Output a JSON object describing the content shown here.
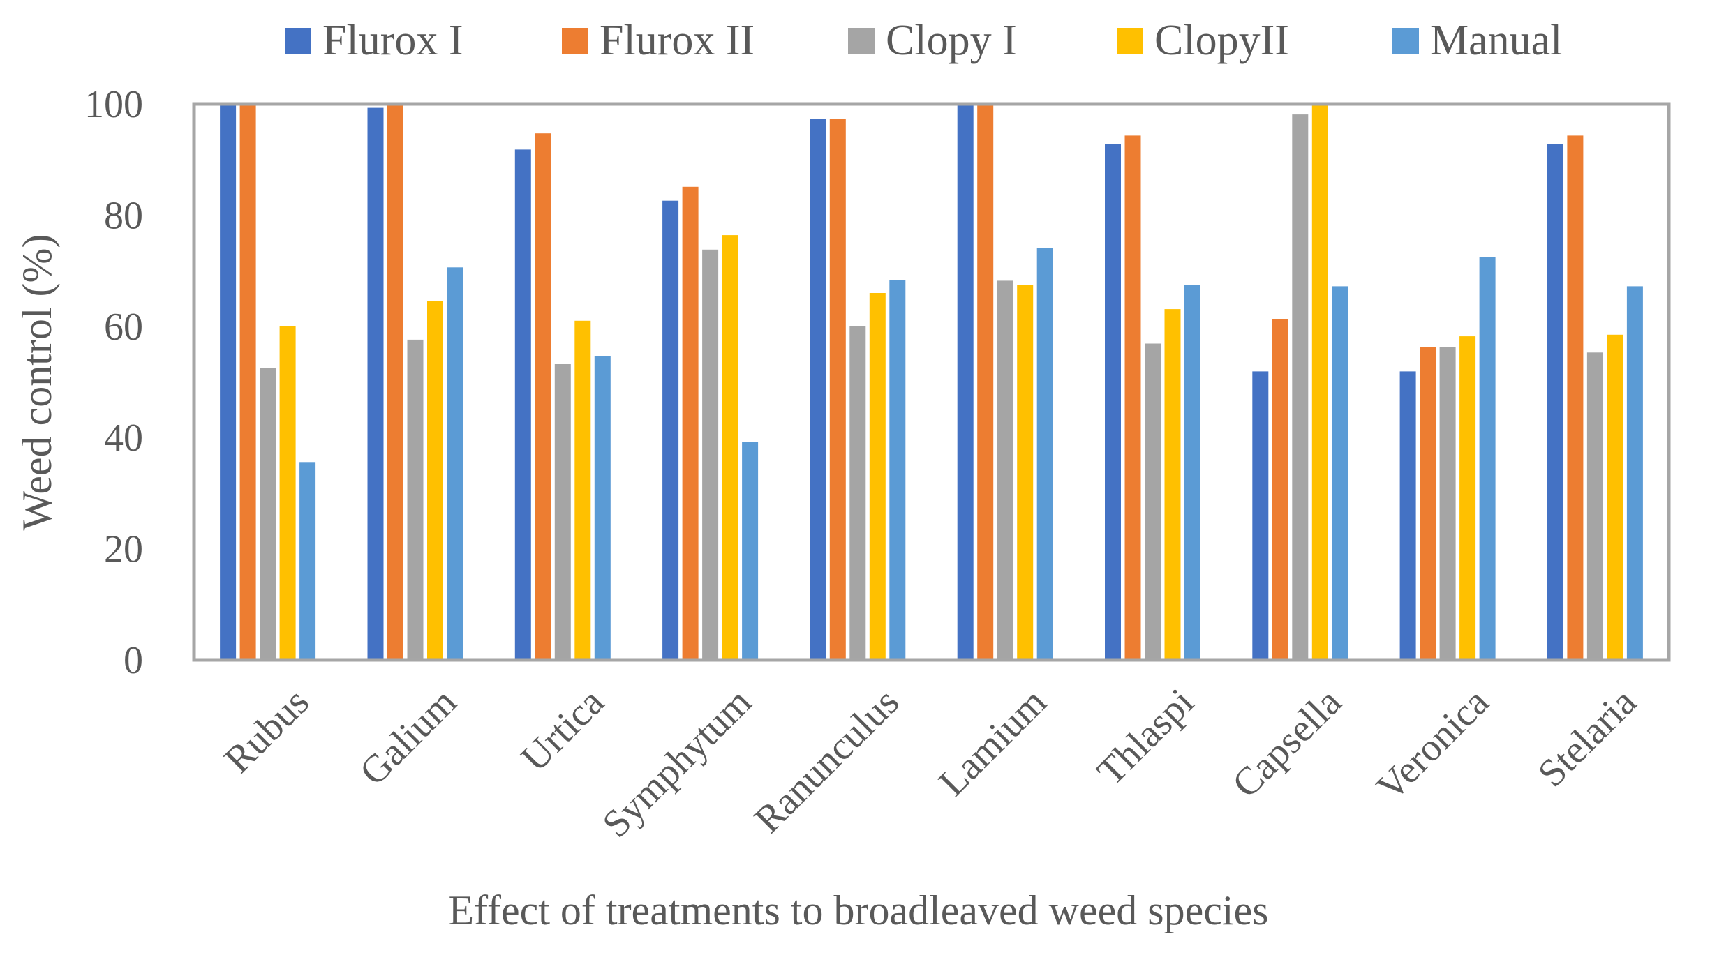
{
  "chart_data": {
    "type": "bar",
    "title": "",
    "xlabel": "Effect of treatments to broadleaved weed species",
    "ylabel": "Weed control (%)",
    "ylim": [
      0,
      100
    ],
    "yticks": [
      "0",
      "20",
      "40",
      "60",
      "80",
      "100"
    ],
    "grid": false,
    "legend_position": "top",
    "categories": [
      "Rubus",
      "Galium",
      "Urtica",
      "Symphytum",
      "Ranunculus",
      "Lamium",
      "Thlaspi",
      "Capsella",
      "Veronica",
      "Stelaria"
    ],
    "series": [
      {
        "name": "Flurox I",
        "color": "#4472C4",
        "values": [
          100,
          99.3,
          91.8,
          82.6,
          97.3,
          100,
          92.8,
          51.9,
          51.9,
          92.8
        ]
      },
      {
        "name": "Flurox II",
        "color": "#ED7D31",
        "values": [
          100,
          100,
          94.7,
          85.1,
          97.3,
          100,
          94.3,
          61.3,
          56.3,
          94.3
        ]
      },
      {
        "name": "Clopy I",
        "color": "#A5A5A5",
        "values": [
          52.5,
          57.6,
          53.2,
          73.8,
          60.1,
          68.2,
          56.9,
          98.1,
          56.3,
          55.3
        ]
      },
      {
        "name": "ClopyII",
        "color": "#FFC000",
        "values": [
          60.1,
          64.6,
          61.0,
          76.4,
          66.0,
          67.4,
          63.1,
          100,
          58.2,
          58.5
        ]
      },
      {
        "name": "Manual",
        "color": "#5B9BD5",
        "values": [
          35.6,
          70.6,
          54.7,
          39.2,
          68.3,
          74.1,
          67.5,
          67.2,
          72.5,
          67.2
        ]
      }
    ]
  }
}
